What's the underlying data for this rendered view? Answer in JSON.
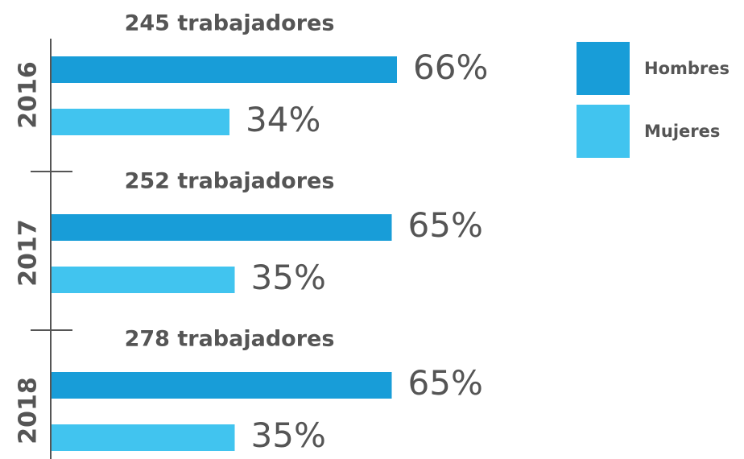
{
  "chart_data": {
    "type": "hbar",
    "categories": [
      "2016",
      "2017",
      "2018"
    ],
    "annotations": [
      "245 trabajadores",
      "252 trabajadores",
      "278 trabajadores"
    ],
    "series": [
      {
        "name": "Hombres",
        "color": "#189dd8",
        "values": [
          66,
          65,
          65
        ],
        "value_labels": [
          "66%",
          "65%",
          "65%"
        ]
      },
      {
        "name": "Mujeres",
        "color": "#41c4ef",
        "values": [
          34,
          35,
          35
        ],
        "value_labels": [
          "34%",
          "35%",
          "35%"
        ]
      }
    ],
    "xlim": [
      0,
      100
    ],
    "legend": "top-right"
  }
}
